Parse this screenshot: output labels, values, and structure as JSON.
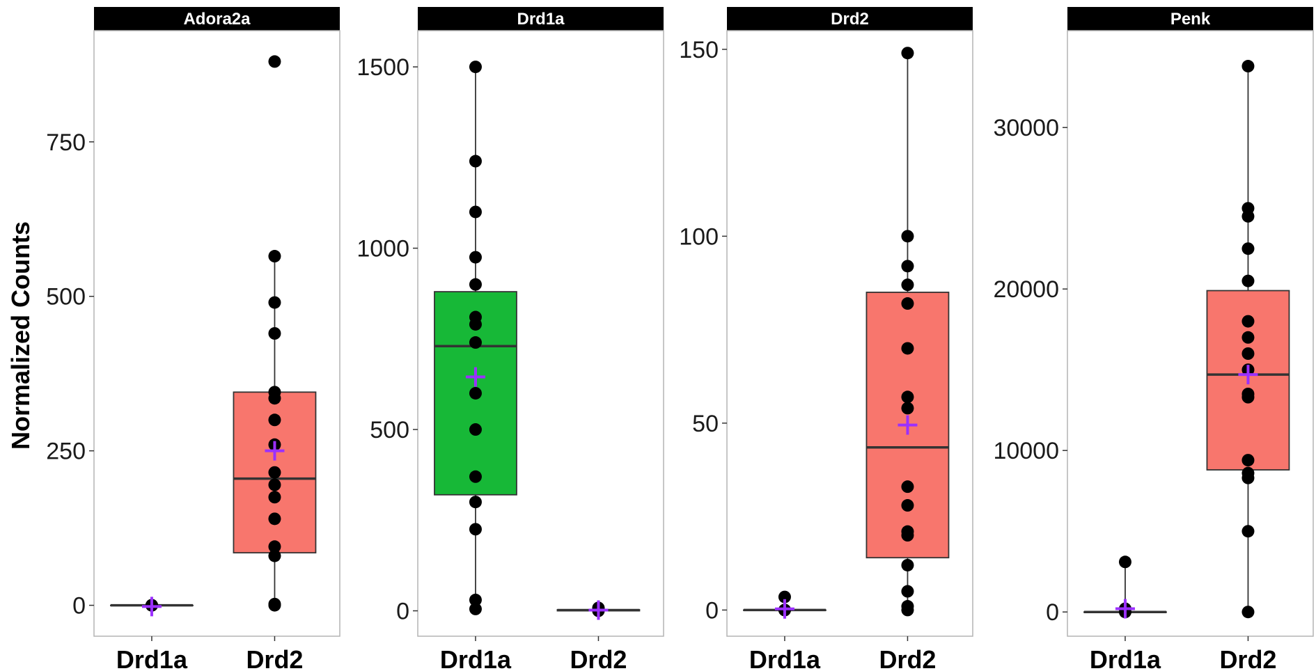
{
  "chart_data": {
    "type": "box",
    "ylabel": "Normalized Counts",
    "xlabel": "",
    "categories": [
      "Drd1a",
      "Drd2"
    ],
    "mean_marker": "+",
    "colors": {
      "strip_bg": "#000000",
      "strip_text": "#ffffff",
      "box_drd1a_panel": "#17b837",
      "box_drd2_panel": "#f8766d",
      "mean": "#9b30ff",
      "point": "#000000",
      "median": "#333333",
      "panel_border": "#b3b3b3"
    },
    "panels": [
      {
        "title": "Adora2a",
        "ylim": [
          -50,
          930
        ],
        "yticks": [
          0,
          250,
          500,
          750
        ],
        "ytick_labels": [
          "0",
          "250",
          "500",
          "750"
        ],
        "groups": [
          {
            "name": "Drd1a",
            "fill": "",
            "min": 0,
            "q1": 0,
            "median": 0,
            "q3": 0,
            "max": 0,
            "mean": -2,
            "points": [
              0,
              0,
              0,
              0,
              0
            ]
          },
          {
            "name": "Drd2",
            "fill": "#f8766d",
            "min": 0,
            "q1": 85,
            "median": 205,
            "q3": 345,
            "max": 565,
            "mean": 250,
            "points": [
              880,
              565,
              490,
              440,
              345,
              335,
              300,
              260,
              215,
              195,
              175,
              140,
              95,
              80,
              2,
              0
            ]
          }
        ]
      },
      {
        "title": "Drd1a",
        "ylim": [
          -70,
          1600
        ],
        "yticks": [
          0,
          500,
          1000,
          1500
        ],
        "ytick_labels": [
          "0",
          "500",
          "1000",
          "1500"
        ],
        "groups": [
          {
            "name": "Drd1a",
            "fill": "#17b837",
            "min": 0,
            "q1": 320,
            "median": 730,
            "q3": 880,
            "max": 1500,
            "mean": 645,
            "points": [
              1500,
              1240,
              1100,
              975,
              900,
              810,
              790,
              740,
              600,
              500,
              370,
              300,
              225,
              30,
              5
            ]
          },
          {
            "name": "Drd2",
            "fill": "",
            "min": 0,
            "q1": 0,
            "median": 2,
            "q3": 3,
            "max": 8,
            "mean": 2,
            "points": [
              8,
              5,
              2,
              0
            ]
          }
        ]
      },
      {
        "title": "Drd2",
        "ylim": [
          -7,
          155
        ],
        "yticks": [
          0,
          50,
          100,
          150
        ],
        "ytick_labels": [
          "0",
          "50",
          "100",
          "150"
        ],
        "groups": [
          {
            "name": "Drd1a",
            "fill": "",
            "min": 0,
            "q1": 0,
            "median": 0,
            "q3": 0,
            "max": 3.5,
            "mean": 0.3,
            "points": [
              3.5,
              0,
              0,
              0
            ]
          },
          {
            "name": "Drd2",
            "fill": "#f8766d",
            "min": 0,
            "q1": 14,
            "median": 43.5,
            "q3": 85,
            "max": 149,
            "mean": 49.5,
            "points": [
              149,
              100,
              92,
              87,
              82,
              70,
              57,
              54,
              33,
              28,
              21,
              20,
              12,
              5,
              1,
              0
            ]
          }
        ]
      },
      {
        "title": "Penk",
        "ylim": [
          -1500,
          36000
        ],
        "yticks": [
          0,
          10000,
          20000,
          30000
        ],
        "ytick_labels": [
          "0",
          "10000",
          "20000",
          "30000"
        ],
        "groups": [
          {
            "name": "Drd1a",
            "fill": "",
            "min": 0,
            "q1": 0,
            "median": 0,
            "q3": 0,
            "max": 3100,
            "mean": 200,
            "points": [
              3100,
              200,
              0
            ]
          },
          {
            "name": "Drd2",
            "fill": "#f8766d",
            "min": 0,
            "q1": 8800,
            "median": 14700,
            "q3": 19900,
            "max": 33800,
            "mean": 14700,
            "points": [
              33800,
              25000,
              24500,
              22500,
              20500,
              18000,
              17000,
              16000,
              15000,
              13500,
              13300,
              9400,
              8600,
              8300,
              5000,
              0
            ]
          }
        ]
      }
    ]
  }
}
